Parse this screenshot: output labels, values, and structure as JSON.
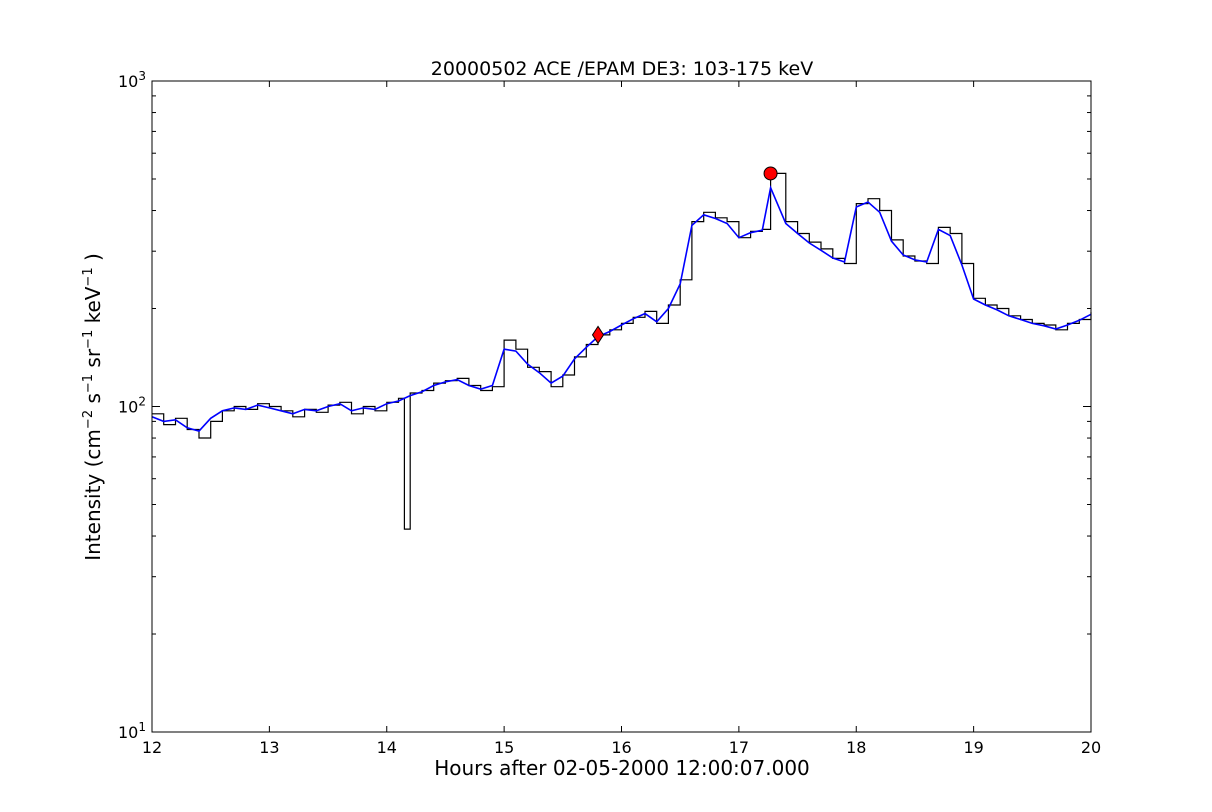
{
  "chart_data": {
    "type": "line",
    "title": "20000502 ACE /EPAM DE3: 103-175 keV",
    "xlabel": "Hours after 02-05-2000 12:00:07.000",
    "ylabel": {
      "prefix": "Intensity (cm",
      "exp1": "−2",
      "s": " s",
      "exp2": "−1",
      "sr": " sr",
      "exp3": "−1",
      "kev": " keV",
      "exp4": "−1",
      "suffix": " )"
    },
    "xlim": [
      12,
      20
    ],
    "ylim": [
      10,
      1000
    ],
    "yscale": "log",
    "grid": false,
    "x_ticks": [
      "12",
      "13",
      "14",
      "15",
      "16",
      "17",
      "18",
      "19",
      "20"
    ],
    "y_ticks": [
      {
        "value": 10,
        "base": "10",
        "exp": "1"
      },
      {
        "value": 100,
        "base": "10",
        "exp": "2"
      },
      {
        "value": 1000,
        "base": "10",
        "exp": "3"
      }
    ],
    "colors": {
      "raw": "#000000",
      "smoothed": "#0000ff",
      "marker": "#ff0000"
    },
    "series": [
      {
        "style": "raw-steps",
        "x": [
          12.0,
          12.1,
          12.2,
          12.3,
          12.4,
          12.5,
          12.6,
          12.7,
          12.8,
          12.9,
          13.0,
          13.1,
          13.2,
          13.3,
          13.4,
          13.5,
          13.6,
          13.7,
          13.8,
          13.9,
          14.0,
          14.1,
          14.15,
          14.2,
          14.3,
          14.4,
          14.5,
          14.6,
          14.7,
          14.8,
          14.9,
          15.0,
          15.1,
          15.2,
          15.3,
          15.4,
          15.5,
          15.6,
          15.7,
          15.8,
          15.9,
          16.0,
          16.1,
          16.2,
          16.3,
          16.4,
          16.5,
          16.6,
          16.7,
          16.8,
          16.9,
          17.0,
          17.1,
          17.2,
          17.27,
          17.4,
          17.5,
          17.6,
          17.7,
          17.8,
          17.9,
          18.0,
          18.1,
          18.2,
          18.3,
          18.4,
          18.5,
          18.6,
          18.7,
          18.8,
          18.9,
          19.0,
          19.1,
          19.2,
          19.3,
          19.4,
          19.5,
          19.6,
          19.7,
          19.8,
          19.9,
          20.0
        ],
        "y": [
          95,
          88,
          92,
          85,
          80,
          90,
          97,
          100,
          98,
          102,
          100,
          97,
          93,
          98,
          96,
          101,
          103,
          95,
          100,
          97,
          103,
          106,
          42,
          110,
          112,
          118,
          120,
          122,
          116,
          112,
          115,
          160,
          150,
          132,
          128,
          115,
          125,
          142,
          155,
          166,
          172,
          180,
          188,
          196,
          180,
          205,
          245,
          370,
          395,
          380,
          370,
          330,
          345,
          350,
          520,
          370,
          340,
          320,
          305,
          285,
          275,
          420,
          435,
          400,
          325,
          290,
          280,
          275,
          355,
          340,
          275,
          215,
          205,
          200,
          190,
          185,
          180,
          178,
          172,
          180,
          185,
          195
        ]
      },
      {
        "style": "smoothed",
        "x": [
          12.0,
          12.1,
          12.2,
          12.3,
          12.4,
          12.5,
          12.6,
          12.7,
          12.8,
          12.9,
          13.0,
          13.1,
          13.2,
          13.3,
          13.4,
          13.5,
          13.6,
          13.7,
          13.8,
          13.9,
          14.0,
          14.1,
          14.2,
          14.3,
          14.4,
          14.5,
          14.6,
          14.7,
          14.8,
          14.9,
          15.0,
          15.1,
          15.2,
          15.3,
          15.4,
          15.5,
          15.6,
          15.7,
          15.8,
          15.9,
          16.0,
          16.1,
          16.2,
          16.3,
          16.4,
          16.5,
          16.6,
          16.7,
          16.8,
          16.9,
          17.0,
          17.1,
          17.2,
          17.27,
          17.4,
          17.5,
          17.6,
          17.7,
          17.8,
          17.9,
          18.0,
          18.1,
          18.2,
          18.3,
          18.4,
          18.5,
          18.6,
          18.7,
          18.8,
          18.9,
          19.0,
          19.1,
          19.2,
          19.3,
          19.4,
          19.5,
          19.6,
          19.7,
          19.8,
          19.9,
          20.0
        ],
        "y": [
          93,
          90,
          91,
          86,
          84,
          92,
          97,
          99,
          98,
          101,
          99,
          97,
          95,
          98,
          97,
          100,
          102,
          97,
          99,
          98,
          102,
          104,
          108,
          111,
          116,
          119,
          121,
          116,
          113,
          116,
          150,
          148,
          135,
          127,
          118,
          124,
          140,
          152,
          164,
          170,
          178,
          186,
          193,
          182,
          200,
          238,
          360,
          388,
          378,
          365,
          330,
          342,
          348,
          470,
          365,
          340,
          318,
          302,
          286,
          278,
          410,
          425,
          395,
          322,
          292,
          282,
          278,
          350,
          335,
          272,
          214,
          205,
          198,
          190,
          185,
          180,
          177,
          173,
          178,
          184,
          192
        ]
      }
    ],
    "markers": [
      {
        "shape": "diamond",
        "x": 15.8,
        "y": 166
      },
      {
        "shape": "circle",
        "x": 17.27,
        "y": 520
      }
    ]
  }
}
